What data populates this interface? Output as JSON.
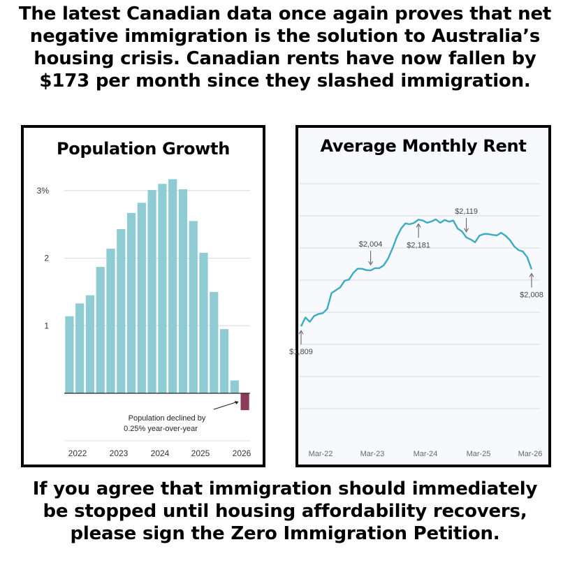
{
  "headline": {
    "line1": "The latest Canadian data once again proves that net",
    "line2": "negative immigration is the solution to Australia’s",
    "line3": "housing crisis. Canadian rents have now fallen by",
    "line4": "$173 per month since they slashed immigration."
  },
  "footer": {
    "line1": "If you agree that immigration should immediately",
    "line2": "be stopped until housing affordability recovers,",
    "line3": "please sign the Zero Immigration Petition."
  },
  "chart_data": [
    {
      "type": "bar",
      "title": "Population Growth",
      "y_tick_labels": [
        "3%",
        "2",
        "1"
      ],
      "y_ticks": [
        3,
        2,
        1
      ],
      "ylim": [
        -0.3,
        3.3
      ],
      "x_tick_labels": [
        "2022",
        "2023",
        "2024",
        "2025",
        "2026"
      ],
      "values": [
        1.14,
        1.33,
        1.45,
        1.87,
        2.14,
        2.43,
        2.67,
        2.82,
        3.01,
        3.1,
        3.17,
        3.02,
        2.55,
        2.08,
        1.5,
        0.95,
        0.19,
        -0.25
      ],
      "highlight_color": "#8b3a5a",
      "bar_color": "#8ecbd3",
      "annotation": {
        "line1": "Population declined by",
        "line2": "0.25% year-over-year"
      }
    },
    {
      "type": "line",
      "title": "Average Monthly Rent",
      "x_tick_labels": [
        "Mar-22",
        "Mar-23",
        "Mar-24",
        "Mar-25",
        "Mar-26"
      ],
      "line_color": "#3aabc4",
      "ylim": [
        1700,
        2260
      ],
      "values": [
        1809,
        1840,
        1825,
        1845,
        1852,
        1855,
        1870,
        1925,
        1935,
        1945,
        1968,
        1972,
        1995,
        2010,
        2010,
        2005,
        2004,
        2012,
        2012,
        2022,
        2045,
        2080,
        2120,
        2150,
        2168,
        2165,
        2170,
        2181,
        2178,
        2170,
        2175,
        2182,
        2170,
        2180,
        2174,
        2178,
        2150,
        2140,
        2119,
        2112,
        2102,
        2125,
        2131,
        2131,
        2128,
        2126,
        2135,
        2125,
        2110,
        2088,
        2075,
        2070,
        2050,
        2008
      ],
      "annotations": [
        {
          "label": "$1,809",
          "index": 0
        },
        {
          "label": "$2,004",
          "index": 16
        },
        {
          "label": "$2,181",
          "index": 27
        },
        {
          "label": "$2,119",
          "index": 38
        },
        {
          "label": "$2,008",
          "index": 53
        }
      ]
    }
  ]
}
